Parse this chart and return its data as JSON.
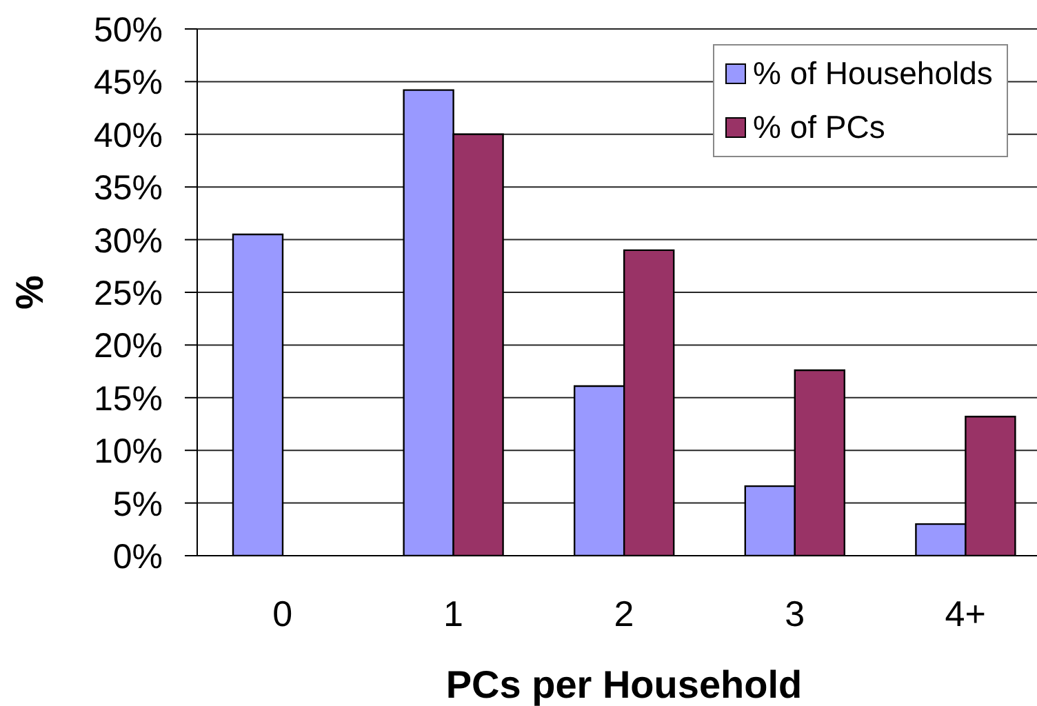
{
  "chart_data": {
    "type": "bar",
    "xlabel": "PCs per Household",
    "ylabel": "%",
    "categories": [
      "0",
      "1",
      "2",
      "3",
      "4+"
    ],
    "series": [
      {
        "name": "% of Households",
        "color": "#9999ff",
        "values": [
          30.5,
          44.2,
          16.1,
          6.6,
          3.0
        ]
      },
      {
        "name": "% of PCs",
        "color": "#993366",
        "values": [
          0,
          40.0,
          29.0,
          17.6,
          13.2
        ]
      }
    ],
    "ylim": [
      0,
      50
    ],
    "yticks": [
      {
        "value": 0,
        "label": "0%"
      },
      {
        "value": 5,
        "label": "5%"
      },
      {
        "value": 10,
        "label": "10%"
      },
      {
        "value": 15,
        "label": "15%"
      },
      {
        "value": 20,
        "label": "20%"
      },
      {
        "value": 25,
        "label": "25%"
      },
      {
        "value": 30,
        "label": "30%"
      },
      {
        "value": 35,
        "label": "35%"
      },
      {
        "value": 40,
        "label": "40%"
      },
      {
        "value": 45,
        "label": "45%"
      },
      {
        "value": 50,
        "label": "50%"
      }
    ],
    "grid": "y",
    "legend": "top right"
  }
}
